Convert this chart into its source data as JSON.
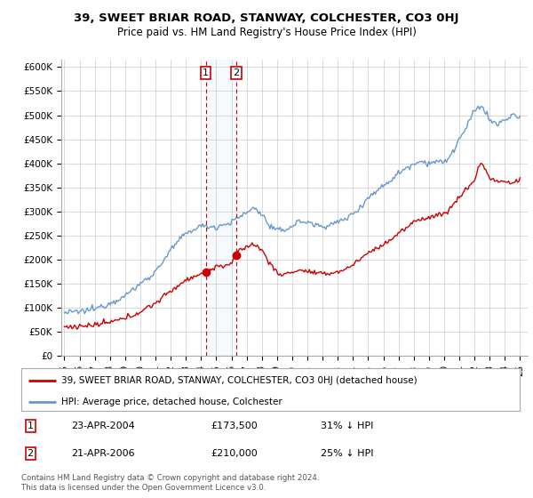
{
  "title": "39, SWEET BRIAR ROAD, STANWAY, COLCHESTER, CO3 0HJ",
  "subtitle": "Price paid vs. HM Land Registry's House Price Index (HPI)",
  "ylabel_ticks": [
    "£0",
    "£50K",
    "£100K",
    "£150K",
    "£200K",
    "£250K",
    "£300K",
    "£350K",
    "£400K",
    "£450K",
    "£500K",
    "£550K",
    "£600K"
  ],
  "ytick_values": [
    0,
    50000,
    100000,
    150000,
    200000,
    250000,
    300000,
    350000,
    400000,
    450000,
    500000,
    550000,
    600000
  ],
  "ylim": [
    0,
    615000
  ],
  "legend_label_red": "39, SWEET BRIAR ROAD, STANWAY, COLCHESTER, CO3 0HJ (detached house)",
  "legend_label_blue": "HPI: Average price, detached house, Colchester",
  "transaction1_date": "23-APR-2004",
  "transaction1_price": "£173,500",
  "transaction1_hpi": "31% ↓ HPI",
  "transaction2_date": "21-APR-2006",
  "transaction2_price": "£210,000",
  "transaction2_hpi": "25% ↓ HPI",
  "footer": "Contains HM Land Registry data © Crown copyright and database right 2024.\nThis data is licensed under the Open Government Licence v3.0.",
  "red_color": "#cc0000",
  "blue_color": "#6699cc",
  "blue_fill": "#ddeeff",
  "transaction1_x": 2004.31,
  "transaction1_y": 173500,
  "transaction2_x": 2006.31,
  "transaction2_y": 210000,
  "vline1_x": 2004.31,
  "vline2_x": 2006.31,
  "xlim_left": 1994.8,
  "xlim_right": 2025.5
}
